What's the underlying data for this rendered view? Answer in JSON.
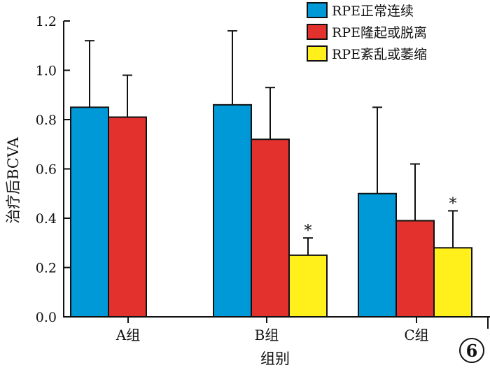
{
  "chart_data": {
    "type": "bar",
    "title": "",
    "xlabel": "组别",
    "ylabel": "治疗后BCVA",
    "ylim": [
      0,
      1.2
    ],
    "yticks": [
      "0.0",
      "0.2",
      "0.4",
      "0.6",
      "0.8",
      "1.0",
      "1.2"
    ],
    "categories": [
      "A组",
      "B组",
      "C组"
    ],
    "series": [
      {
        "name": "RPE正常连续",
        "color": "#0099d8",
        "values": [
          0.85,
          0.86,
          0.5
        ],
        "errors": [
          0.27,
          0.3,
          0.35
        ],
        "annotations": [
          "",
          "",
          ""
        ]
      },
      {
        "name": "RPE隆起或脱离",
        "color": "#e3312d",
        "values": [
          0.81,
          0.72,
          0.39
        ],
        "errors": [
          0.17,
          0.21,
          0.23
        ],
        "annotations": [
          "",
          "",
          ""
        ]
      },
      {
        "name": "RPE紊乱或萎缩",
        "color": "#ffef1a",
        "values": [
          null,
          0.25,
          0.28
        ],
        "errors": [
          null,
          0.07,
          0.15
        ],
        "annotations": [
          "",
          "*",
          "*"
        ]
      }
    ],
    "legend_position": "top-right",
    "grid": false
  },
  "badge": {
    "label": "6"
  }
}
